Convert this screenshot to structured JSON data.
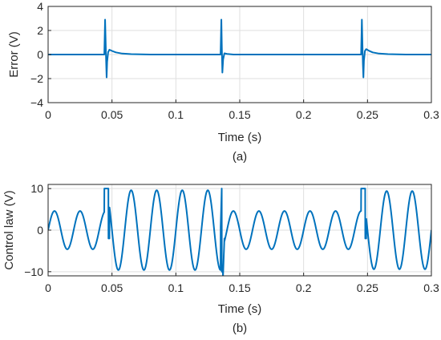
{
  "chart_data": [
    {
      "type": "line",
      "caption": "(a)",
      "xlabel": "Time (s)",
      "ylabel": "Error (V)",
      "xlim": [
        0,
        0.3
      ],
      "ylim": [
        -4,
        4
      ],
      "xticks": [
        0,
        0.05,
        0.1,
        0.15,
        0.2,
        0.25,
        0.3
      ],
      "xtick_labels": [
        "0",
        "0.05",
        "0.1",
        "0.15",
        "0.2",
        "0.25",
        "0.3"
      ],
      "yticks": [
        -4,
        -2,
        0,
        2,
        4
      ],
      "ytick_labels": [
        "−4",
        "−2",
        "0",
        "2",
        "4"
      ],
      "grid": true,
      "color": "#0072BD",
      "series": [
        {
          "x": [
            0,
            0.044,
            0.0446,
            0.045,
            0.0454,
            0.0458,
            0.0462,
            0.047,
            0.048,
            0.05,
            0.053,
            0.058,
            0.065,
            0.08,
            0.135,
            0.1356,
            0.136,
            0.1364,
            0.137,
            0.138,
            0.14,
            0.145,
            0.245,
            0.2456,
            0.246,
            0.2464,
            0.2468,
            0.2472,
            0.248,
            0.249,
            0.251,
            0.254,
            0.259,
            0.266,
            0.28,
            0.3
          ],
          "y": [
            0,
            0,
            2.9,
            1.2,
            -0.5,
            -1.9,
            -0.6,
            0.2,
            0.4,
            0.3,
            0.18,
            0.08,
            0.03,
            0,
            0,
            2.9,
            0.5,
            -1.5,
            -0.4,
            0.1,
            0.05,
            0,
            0,
            2.9,
            1.0,
            -0.8,
            -1.9,
            -0.5,
            0.3,
            0.45,
            0.32,
            0.18,
            0.08,
            0.03,
            0,
            0
          ]
        }
      ]
    },
    {
      "type": "line",
      "caption": "(b)",
      "xlabel": "Time (s)",
      "ylabel": "Control law (V)",
      "xlim": [
        0,
        0.3
      ],
      "ylim": [
        -11,
        11
      ],
      "xticks": [
        0,
        0.05,
        0.1,
        0.15,
        0.2,
        0.25,
        0.3
      ],
      "xtick_labels": [
        "0",
        "0.05",
        "0.1",
        "0.15",
        "0.2",
        "0.25",
        "0.3"
      ],
      "yticks": [
        -10,
        0,
        10
      ],
      "ytick_labels": [
        "−10",
        "0",
        "10"
      ],
      "grid": true,
      "color": "#0072BD",
      "segments": [
        {
          "t0": 0,
          "t1": 0.044,
          "amplitude": 4.6,
          "frequency_hz": 50,
          "phase_deg": 0
        },
        {
          "t0": 0.044,
          "t1": 0.048,
          "saturation": 10
        },
        {
          "t0": 0.048,
          "t1": 0.135,
          "amplitude": 9.6,
          "frequency_hz": 50,
          "phase_deg": 0
        },
        {
          "t0": 0.135,
          "t1": 0.138,
          "spike": [
            10,
            -10
          ]
        },
        {
          "t0": 0.138,
          "t1": 0.245,
          "amplitude": 4.6,
          "frequency_hz": 50,
          "phase_deg": 0
        },
        {
          "t0": 0.245,
          "t1": 0.249,
          "saturation": 10
        },
        {
          "t0": 0.249,
          "t1": 0.3,
          "amplitude": 9.4,
          "frequency_hz": 50,
          "phase_deg": 0
        }
      ]
    }
  ]
}
